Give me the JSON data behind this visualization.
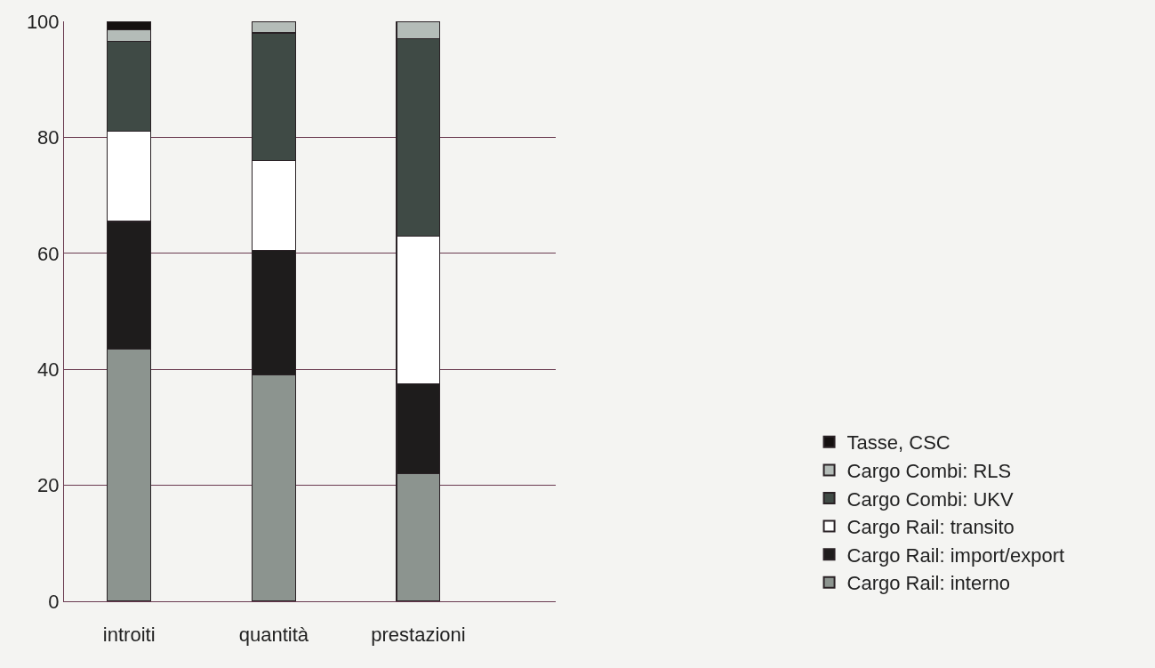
{
  "chart_data": {
    "type": "bar",
    "stacked": true,
    "categories": [
      "introiti",
      "quantità",
      "prestazioni"
    ],
    "series": [
      {
        "name": "Cargo Rail: interno",
        "color": "#8c948f",
        "values": [
          43.5,
          39,
          22
        ]
      },
      {
        "name": "Cargo Rail: import/export",
        "color": "#1e1c1c",
        "values": [
          22,
          21.5,
          15.5
        ]
      },
      {
        "name": "Cargo Rail: transito",
        "color": "#ffffff",
        "values": [
          15.5,
          15.5,
          25.5
        ]
      },
      {
        "name": "Cargo Combi: UKV",
        "color": "#3f4a45",
        "values": [
          15.5,
          22,
          34
        ]
      },
      {
        "name": "Cargo Combi: RLS",
        "color": "#b4bcb8",
        "values": [
          2,
          2,
          3
        ]
      },
      {
        "name": "Tasse, CSC",
        "color": "#141010",
        "values": [
          1.5,
          null,
          null
        ]
      }
    ],
    "ylim": [
      0,
      100
    ],
    "yticks": [
      0,
      20,
      40,
      60,
      80,
      100
    ],
    "grid": "y",
    "legend": "bottom right"
  }
}
